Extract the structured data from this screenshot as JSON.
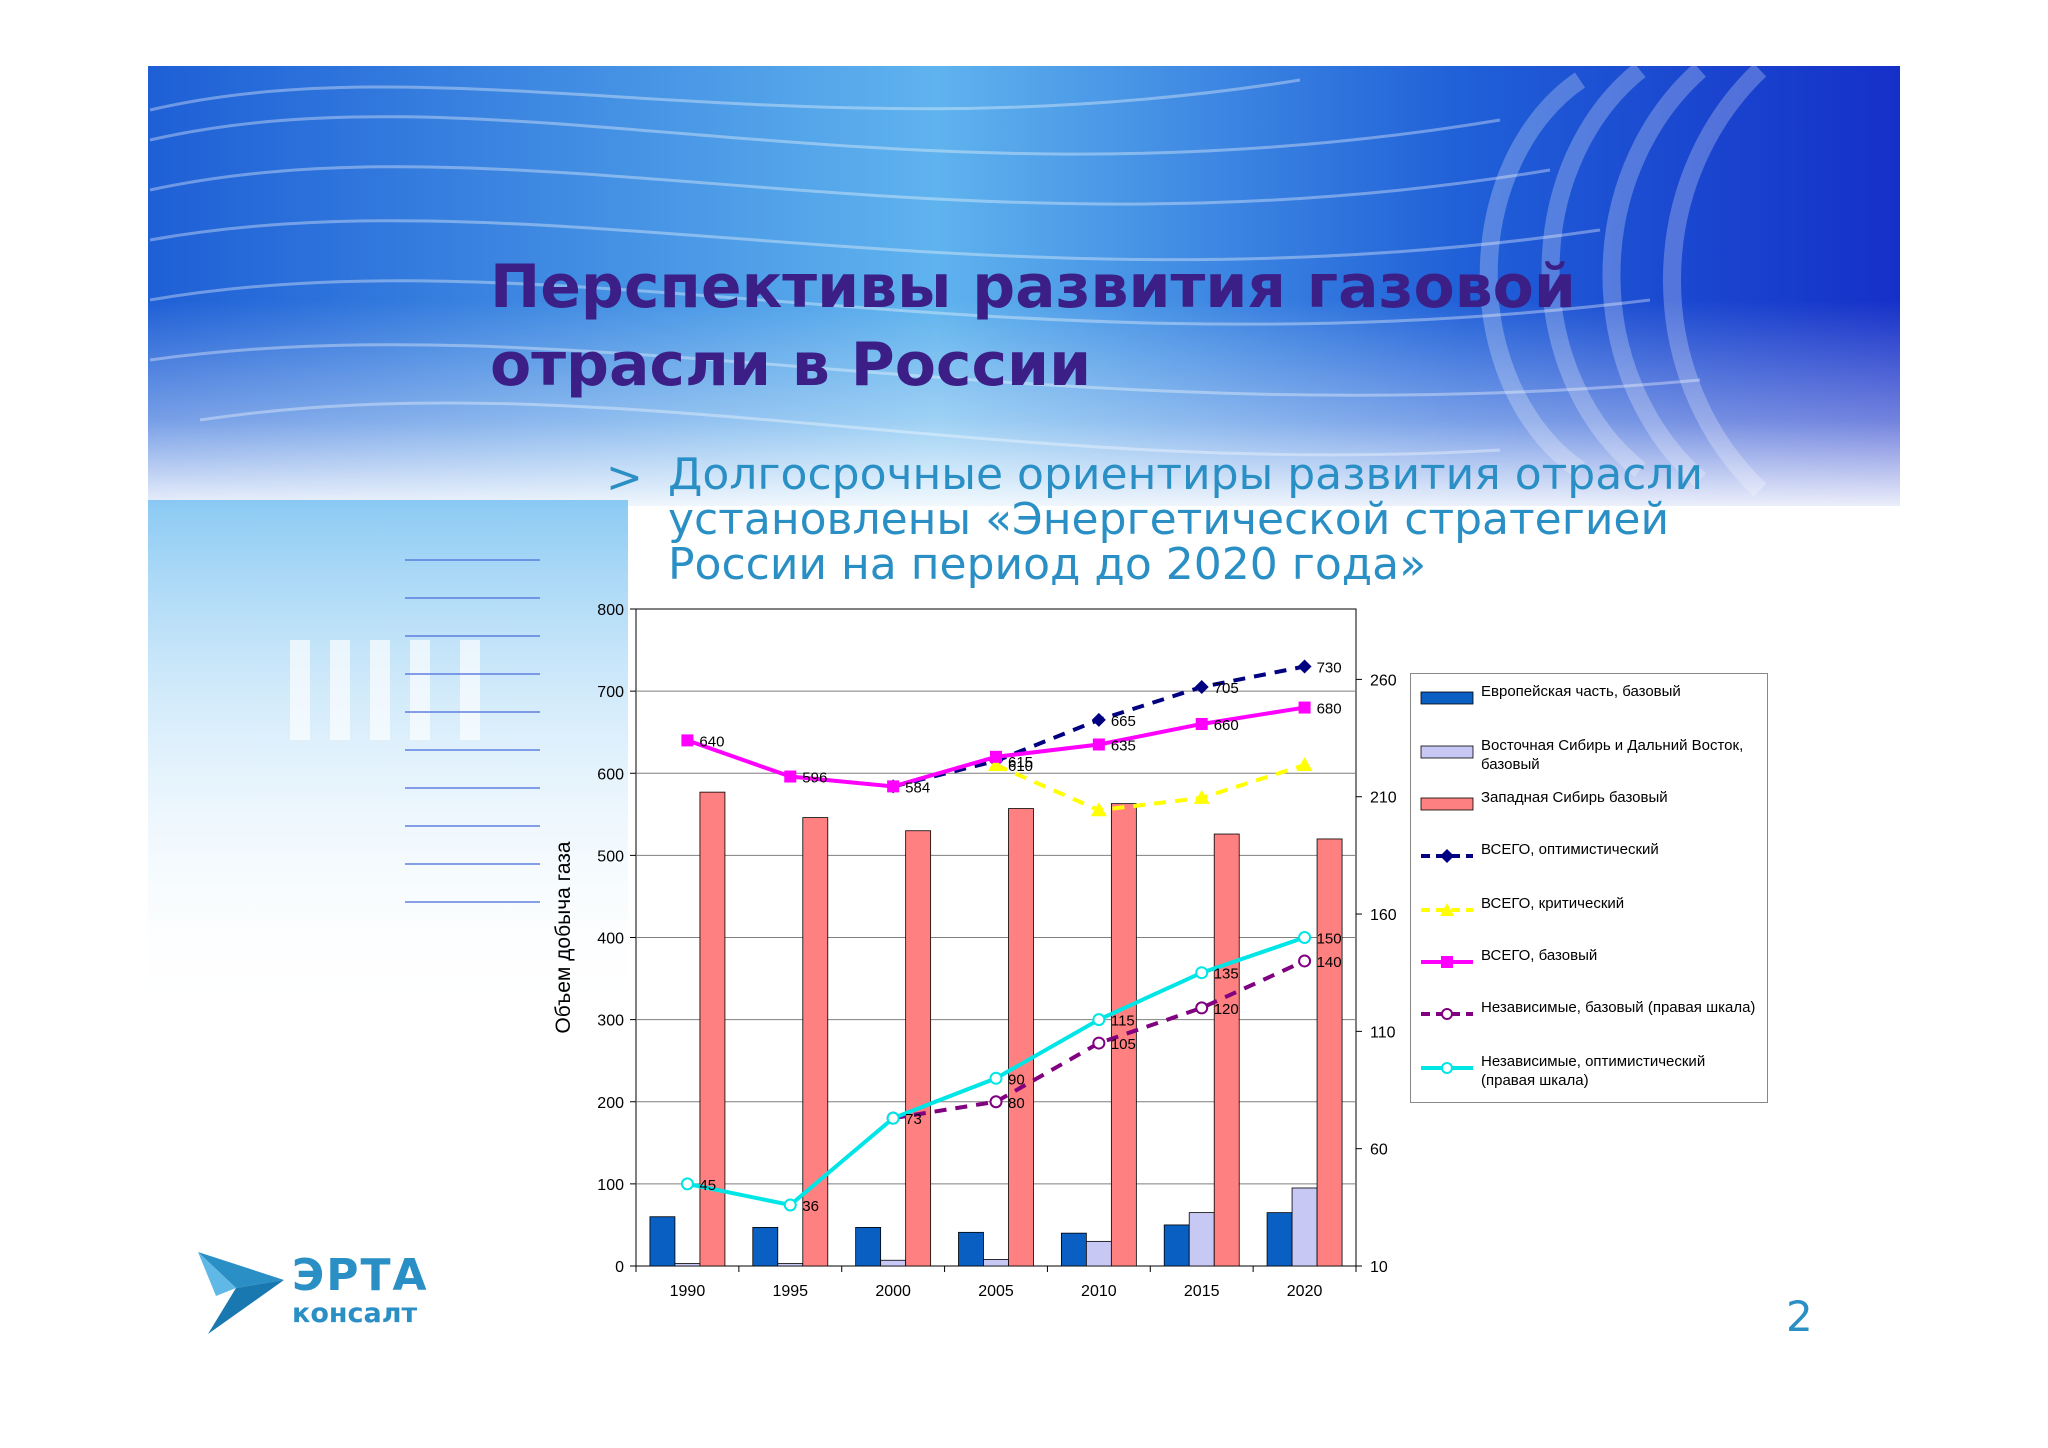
{
  "slide": {
    "title_lines": [
      "Перспективы развития газовой",
      "отрасли в России"
    ],
    "bullet_marker": ">",
    "bullet_lines": [
      "Долгосрочные ориентиры развития отрасли",
      "установлены «Энергетической стратегией",
      "России на период до 2020 года»"
    ],
    "page_number": "2",
    "logo": {
      "name": "ЭРТА",
      "sub": "консалт",
      "color": "#2a8fc4"
    },
    "colors": {
      "title": "#3b1f86",
      "accent": "#2a8fc4"
    }
  },
  "chart_data": {
    "type": "bar",
    "title": "",
    "ylabel": "Объем добыча газа",
    "categories": [
      "1990",
      "1995",
      "2000",
      "2005",
      "2010",
      "2015",
      "2020"
    ],
    "ylim": [
      0,
      800
    ],
    "yticks": [
      0,
      100,
      200,
      300,
      400,
      500,
      600,
      700,
      800
    ],
    "y2lim": [
      10,
      290
    ],
    "y2ticks": [
      10,
      60,
      110,
      160,
      210,
      260
    ],
    "grid": true,
    "legend_position": "right",
    "bar_series": [
      {
        "name": "Европейская часть, базовый",
        "color": "#0a5fc2",
        "values": [
          60,
          47,
          47,
          41,
          40,
          50,
          65
        ]
      },
      {
        "name": "Восточная Сибирь и Дальний Восток, базовый",
        "color": "#c8c8f5",
        "values": [
          3,
          3,
          7,
          8,
          30,
          65,
          95
        ]
      },
      {
        "name": "Западная Сибирь базовый",
        "color": "#ff8080",
        "values": [
          577,
          546,
          530,
          557,
          563,
          526,
          520
        ]
      }
    ],
    "line_series": [
      {
        "name": "ВСЕГО, оптимистический",
        "axis": "left",
        "color": "#000080",
        "style": "dashed",
        "marker": "diamond",
        "x": [
          "2000",
          "2005",
          "2010",
          "2015",
          "2020"
        ],
        "values": [
          584,
          615,
          665,
          705,
          730
        ],
        "labels": [
          null,
          "615",
          "665",
          "705",
          "730"
        ]
      },
      {
        "name": "ВСЕГО, критический",
        "axis": "left",
        "color": "#ffff00",
        "style": "dashed",
        "marker": "triangle",
        "x": [
          "2005",
          "2010",
          "2015",
          "2020"
        ],
        "values": [
          610,
          555,
          570,
          610
        ],
        "labels": [
          "610",
          null,
          null,
          null
        ]
      },
      {
        "name": "ВСЕГО, базовый",
        "axis": "left",
        "color": "#ff00ff",
        "style": "solid",
        "marker": "square",
        "x": [
          "1990",
          "1995",
          "2000",
          "2005",
          "2010",
          "2015",
          "2020"
        ],
        "values": [
          640,
          596,
          584,
          620,
          635,
          660,
          680
        ],
        "labels": [
          "640",
          "596",
          "584",
          null,
          "635",
          "660",
          "680"
        ]
      },
      {
        "name": "Независимые, базовый (правая шкала)",
        "axis": "right",
        "color": "#800080",
        "style": "dashed",
        "marker": "circle",
        "x": [
          "2000",
          "2005",
          "2010",
          "2015",
          "2020"
        ],
        "values": [
          73,
          80,
          105,
          120,
          140
        ],
        "labels": [
          null,
          "80",
          "105",
          "120",
          "140"
        ]
      },
      {
        "name": "Независимые, оптимистический (правая шкала)",
        "axis": "right",
        "color": "#00e5e5",
        "style": "solid",
        "marker": "circle",
        "x": [
          "1990",
          "1995",
          "2000",
          "2005",
          "2010",
          "2015",
          "2020"
        ],
        "values": [
          45,
          36,
          73,
          90,
          115,
          135,
          150
        ],
        "labels": [
          "45",
          "36",
          "73",
          "90",
          "115",
          "135",
          "150"
        ]
      }
    ]
  }
}
